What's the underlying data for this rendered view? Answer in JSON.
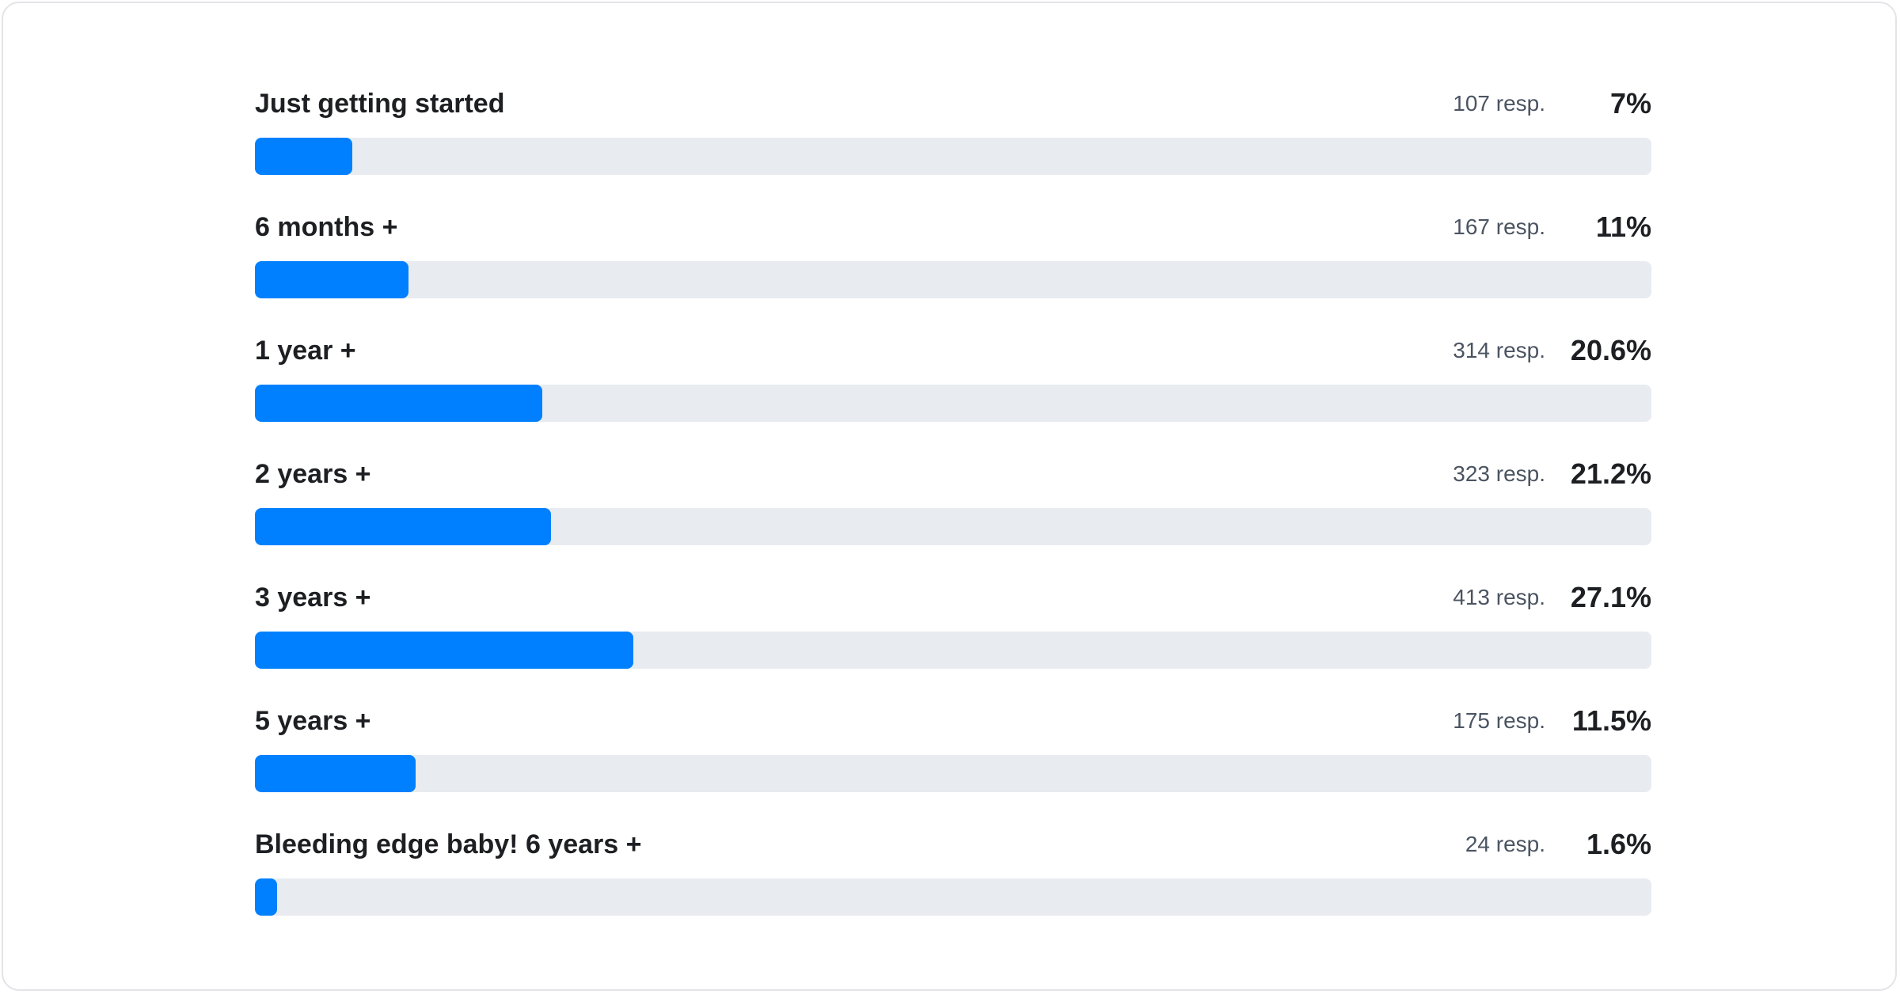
{
  "chart_data": {
    "type": "bar",
    "orientation": "horizontal",
    "xlim": [
      0,
      100
    ],
    "grid": false,
    "colors": {
      "fill": "#0080ff",
      "track": "#e8ebf0"
    },
    "categories": [
      "Just getting started",
      "6 months +",
      "1 year +",
      "2 years +",
      "3 years +",
      "5 years +",
      "Bleeding edge baby! 6 years +"
    ],
    "values": [
      7,
      11,
      20.6,
      21.2,
      27.1,
      11.5,
      1.6
    ],
    "rows": [
      {
        "label": "Just getting started",
        "responses": "107 resp.",
        "percent_label": "7%",
        "percent": 7
      },
      {
        "label": "6 months +",
        "responses": "167 resp.",
        "percent_label": "11%",
        "percent": 11
      },
      {
        "label": "1 year +",
        "responses": "314 resp.",
        "percent_label": "20.6%",
        "percent": 20.6
      },
      {
        "label": "2 years +",
        "responses": "323 resp.",
        "percent_label": "21.2%",
        "percent": 21.2
      },
      {
        "label": "3 years +",
        "responses": "413 resp.",
        "percent_label": "27.1%",
        "percent": 27.1
      },
      {
        "label": "5 years +",
        "responses": "175 resp.",
        "percent_label": "11.5%",
        "percent": 11.5
      },
      {
        "label": "Bleeding edge baby! 6 years +",
        "responses": "24 resp.",
        "percent_label": "1.6%",
        "percent": 1.6
      }
    ]
  }
}
